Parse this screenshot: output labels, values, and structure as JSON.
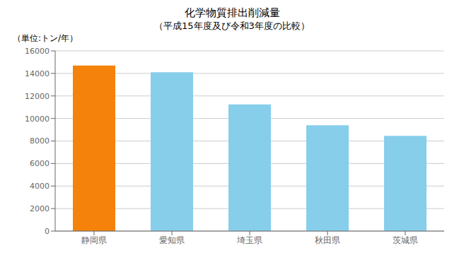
{
  "chart_data": {
    "type": "bar",
    "title": "化学物質排出削減量",
    "subtitle": "（平成15年度及び令和3年度の比較）",
    "ylabel": "（単位:トン/年）",
    "categories": [
      "静岡県",
      "愛知県",
      "埼玉県",
      "秋田県",
      "茨城県"
    ],
    "values": [
      14700,
      14100,
      11250,
      9400,
      8450
    ],
    "colors": [
      "#f5820a",
      "#87ceeb",
      "#87ceeb",
      "#87ceeb",
      "#87ceeb"
    ],
    "ylim": [
      0,
      16000
    ],
    "yticks": [
      0,
      2000,
      4000,
      6000,
      8000,
      10000,
      12000,
      14000,
      16000
    ],
    "grid": true
  }
}
